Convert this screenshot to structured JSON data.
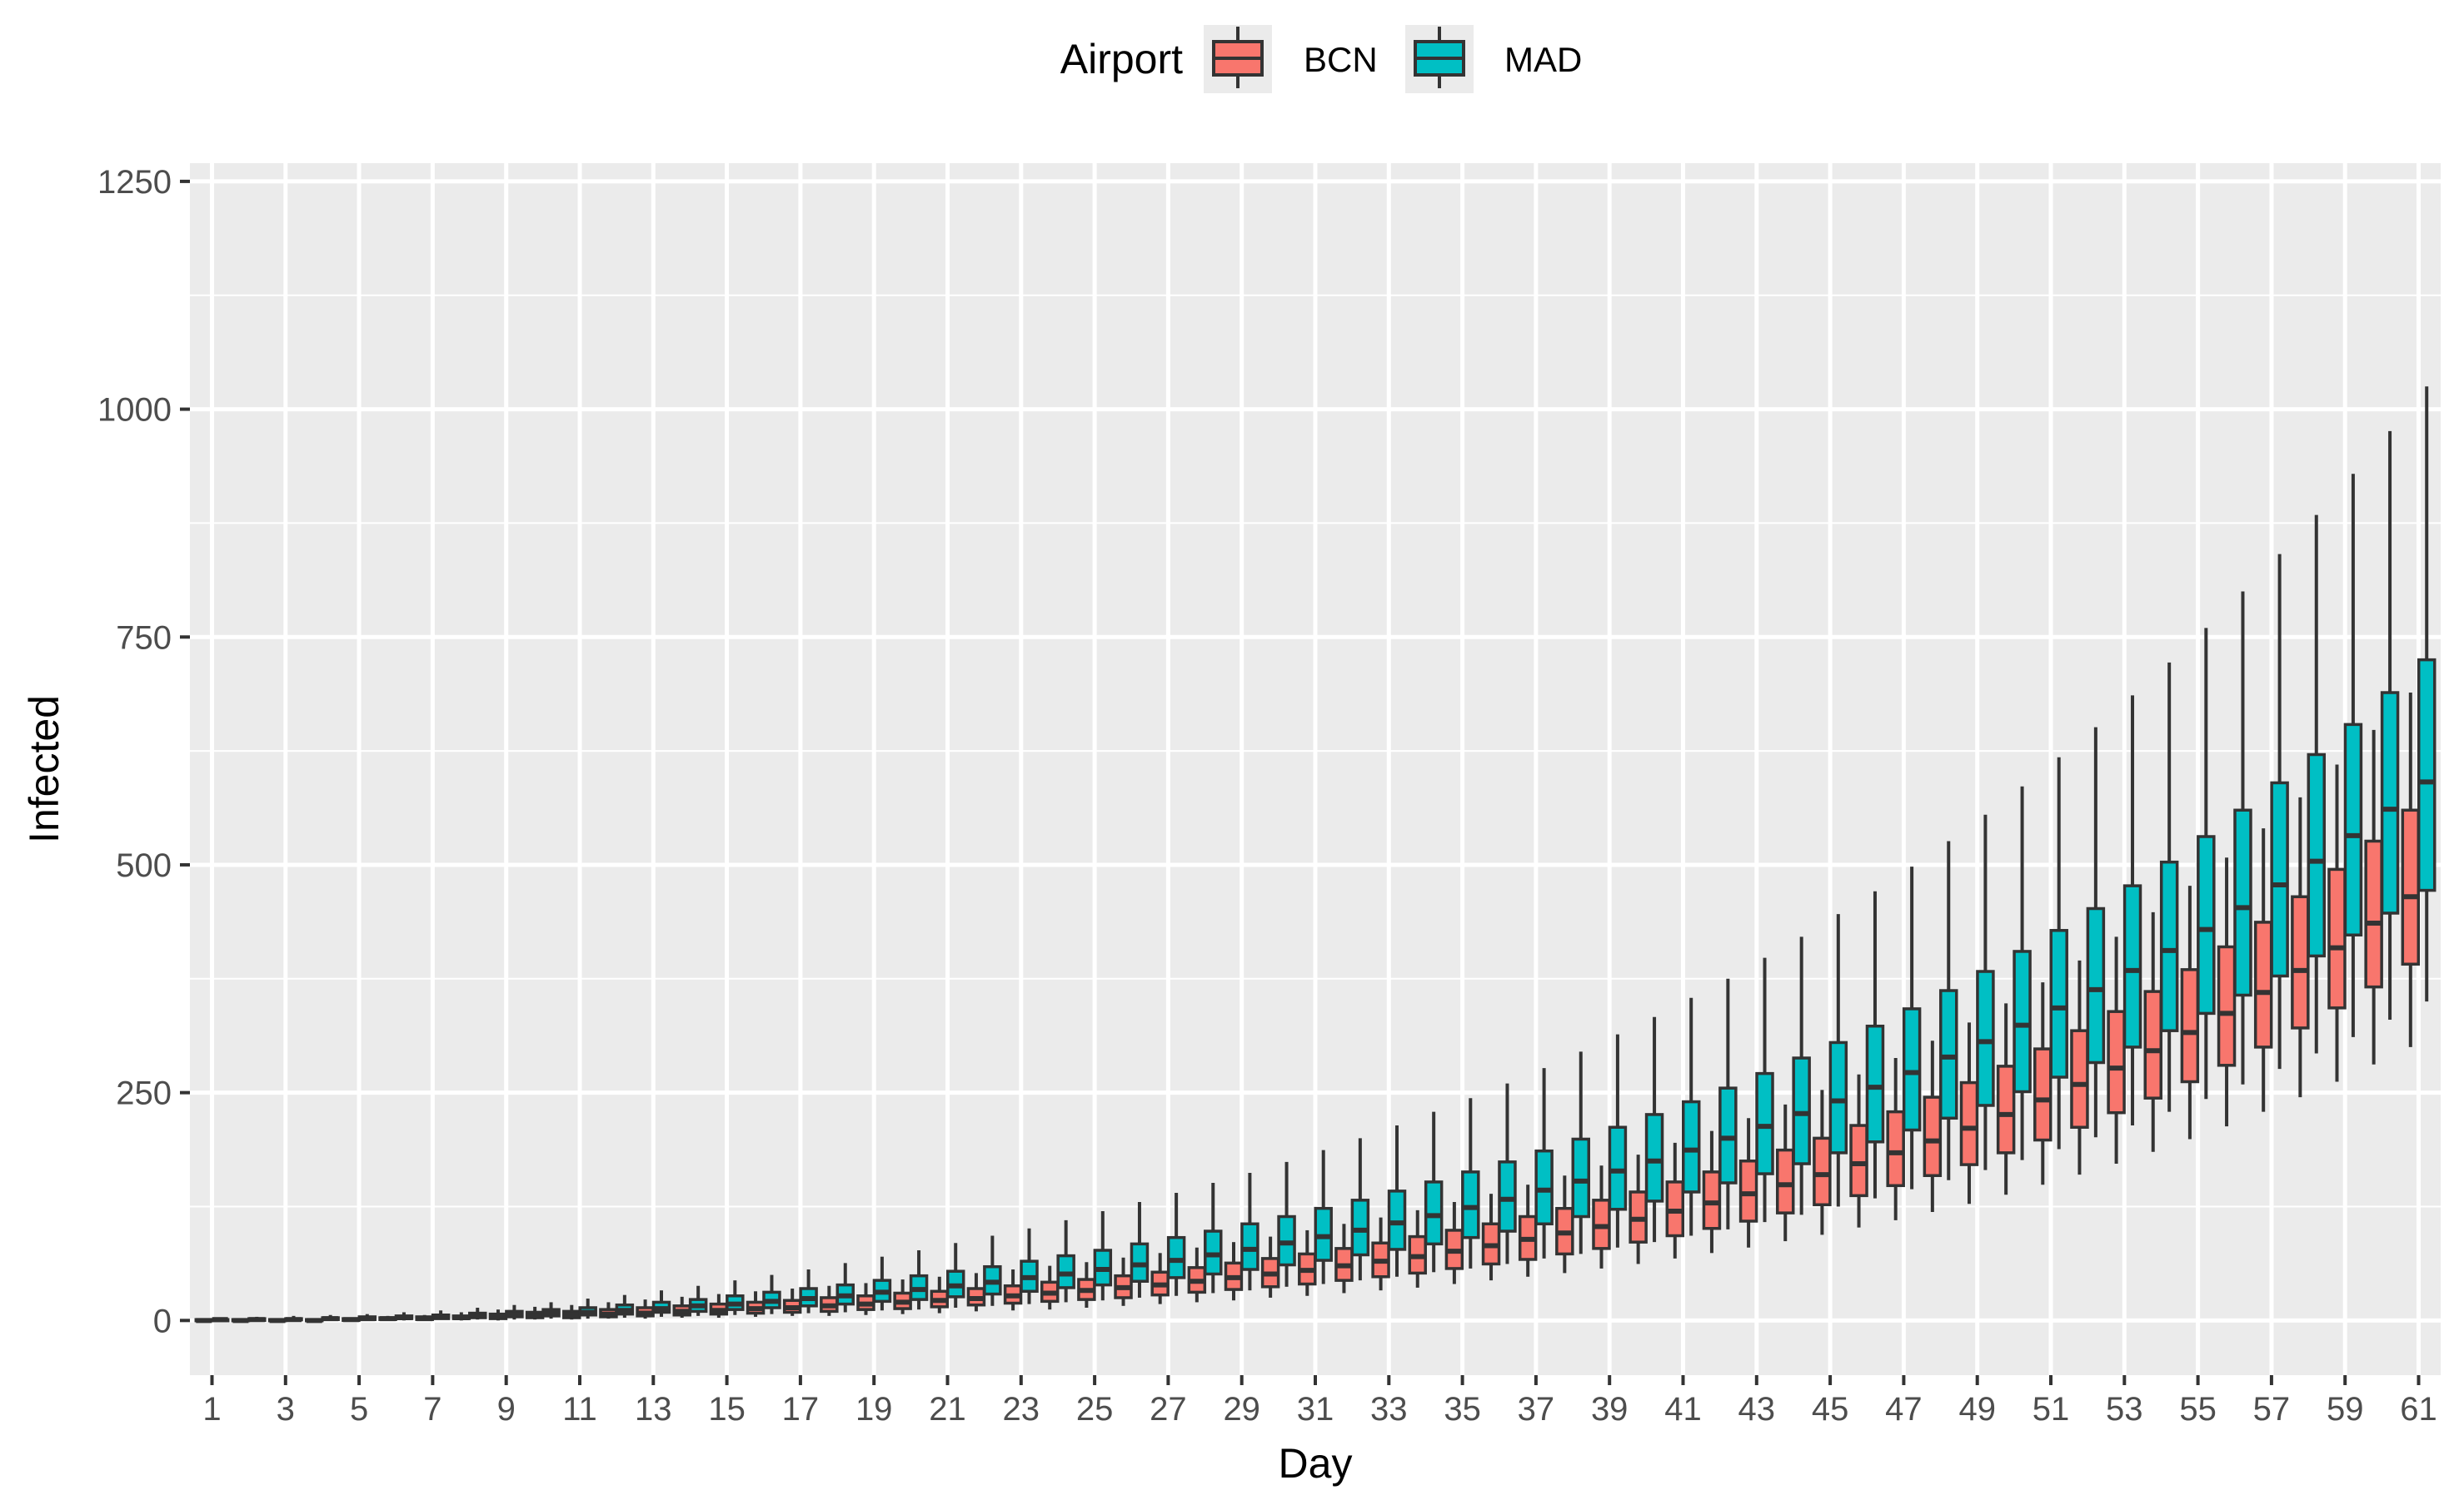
{
  "chart_data": {
    "type": "box",
    "xlabel": "Day",
    "ylabel": "Infected",
    "legend": {
      "title": "Airport",
      "position": "top"
    },
    "ylim": [
      -60,
      1270
    ],
    "yticks": [
      0,
      250,
      500,
      750,
      1000,
      1250
    ],
    "xticks": [
      1,
      3,
      5,
      7,
      9,
      11,
      13,
      15,
      17,
      19,
      21,
      23,
      25,
      27,
      29,
      31,
      33,
      35,
      37,
      39,
      41,
      43,
      45,
      47,
      49,
      51,
      53,
      55,
      57,
      59,
      61
    ],
    "grid": true,
    "box_fields": [
      "day",
      "min",
      "q1",
      "median",
      "q3",
      "max"
    ],
    "series": [
      {
        "name": "BCN",
        "color": "#F8766D",
        "boxes": [
          [
            1,
            0,
            0,
            0,
            1,
            2
          ],
          [
            2,
            0,
            0,
            0,
            1,
            2
          ],
          [
            3,
            0,
            0,
            0,
            1,
            2
          ],
          [
            4,
            0,
            0,
            0,
            1,
            2
          ],
          [
            5,
            0,
            0,
            1,
            2,
            3
          ],
          [
            6,
            0,
            1,
            2,
            3,
            5
          ],
          [
            7,
            0,
            1,
            2,
            4,
            6
          ],
          [
            8,
            0,
            2,
            3,
            5,
            9
          ],
          [
            9,
            0,
            2,
            4,
            7,
            12
          ],
          [
            10,
            1,
            3,
            5,
            9,
            15
          ],
          [
            11,
            1,
            3,
            6,
            10,
            17
          ],
          [
            12,
            2,
            4,
            7,
            12,
            20
          ],
          [
            13,
            2,
            5,
            8,
            14,
            23
          ],
          [
            14,
            3,
            6,
            10,
            16,
            26
          ],
          [
            15,
            3,
            7,
            11,
            18,
            29
          ],
          [
            16,
            4,
            8,
            13,
            20,
            32
          ],
          [
            17,
            5,
            9,
            14,
            22,
            35
          ],
          [
            18,
            5,
            10,
            16,
            25,
            38
          ],
          [
            19,
            6,
            12,
            18,
            27,
            41
          ],
          [
            20,
            7,
            13,
            20,
            30,
            45
          ],
          [
            21,
            8,
            15,
            22,
            32,
            48
          ],
          [
            22,
            10,
            17,
            24,
            35,
            52
          ],
          [
            23,
            11,
            19,
            27,
            38,
            56
          ],
          [
            24,
            12,
            21,
            30,
            42,
            60
          ],
          [
            25,
            14,
            23,
            33,
            45,
            64
          ],
          [
            26,
            16,
            25,
            36,
            49,
            69
          ],
          [
            27,
            18,
            28,
            39,
            53,
            74
          ],
          [
            28,
            20,
            31,
            43,
            58,
            80
          ],
          [
            29,
            22,
            34,
            47,
            63,
            86
          ],
          [
            30,
            25,
            37,
            51,
            68,
            92
          ],
          [
            31,
            27,
            40,
            55,
            73,
            99
          ],
          [
            32,
            30,
            44,
            60,
            79,
            106
          ],
          [
            33,
            33,
            48,
            65,
            85,
            113
          ],
          [
            34,
            36,
            52,
            70,
            92,
            121
          ],
          [
            35,
            40,
            57,
            76,
            99,
            130
          ],
          [
            36,
            44,
            62,
            82,
            106,
            139
          ],
          [
            37,
            48,
            67,
            89,
            114,
            149
          ],
          [
            38,
            52,
            73,
            96,
            123,
            159
          ],
          [
            39,
            57,
            79,
            103,
            132,
            170
          ],
          [
            40,
            62,
            86,
            111,
            141,
            182
          ],
          [
            41,
            68,
            93,
            120,
            152,
            195
          ],
          [
            42,
            74,
            101,
            129,
            163,
            208
          ],
          [
            43,
            80,
            109,
            139,
            175,
            222
          ],
          [
            44,
            87,
            118,
            149,
            187,
            237
          ],
          [
            45,
            94,
            127,
            160,
            200,
            253
          ],
          [
            46,
            102,
            137,
            172,
            214,
            270
          ],
          [
            47,
            110,
            148,
            184,
            229,
            288
          ],
          [
            48,
            119,
            159,
            197,
            245,
            307
          ],
          [
            49,
            128,
            171,
            211,
            261,
            327
          ],
          [
            50,
            138,
            184,
            226,
            279,
            348
          ],
          [
            51,
            149,
            198,
            242,
            298,
            371
          ],
          [
            52,
            160,
            212,
            259,
            318,
            395
          ],
          [
            53,
            172,
            228,
            277,
            339,
            421
          ],
          [
            54,
            185,
            244,
            296,
            361,
            448
          ],
          [
            55,
            199,
            262,
            316,
            385,
            477
          ],
          [
            56,
            213,
            280,
            337,
            410,
            508
          ],
          [
            57,
            229,
            300,
            360,
            437,
            540
          ],
          [
            58,
            245,
            321,
            384,
            465,
            574
          ],
          [
            59,
            262,
            343,
            409,
            495,
            610
          ],
          [
            60,
            281,
            366,
            436,
            526,
            648
          ],
          [
            61,
            300,
            391,
            465,
            560,
            689
          ]
        ]
      },
      {
        "name": "MAD",
        "color": "#00BFC4",
        "boxes": [
          [
            1,
            0,
            0,
            1,
            1,
            3
          ],
          [
            2,
            0,
            0,
            1,
            2,
            4
          ],
          [
            3,
            0,
            1,
            1,
            2,
            5
          ],
          [
            4,
            0,
            1,
            2,
            3,
            6
          ],
          [
            5,
            0,
            1,
            2,
            4,
            7
          ],
          [
            6,
            0,
            2,
            3,
            5,
            9
          ],
          [
            7,
            1,
            2,
            4,
            6,
            11
          ],
          [
            8,
            1,
            3,
            5,
            8,
            14
          ],
          [
            9,
            1,
            4,
            6,
            10,
            17
          ],
          [
            10,
            2,
            5,
            8,
            12,
            20
          ],
          [
            11,
            2,
            6,
            9,
            14,
            24
          ],
          [
            12,
            3,
            7,
            11,
            17,
            28
          ],
          [
            13,
            4,
            9,
            13,
            20,
            33
          ],
          [
            14,
            5,
            10,
            16,
            23,
            38
          ],
          [
            15,
            6,
            12,
            18,
            27,
            44
          ],
          [
            16,
            7,
            14,
            21,
            31,
            50
          ],
          [
            17,
            8,
            16,
            24,
            35,
            56
          ],
          [
            18,
            9,
            18,
            27,
            39,
            63
          ],
          [
            19,
            11,
            21,
            31,
            44,
            70
          ],
          [
            20,
            12,
            23,
            34,
            49,
            77
          ],
          [
            21,
            14,
            26,
            38,
            54,
            85
          ],
          [
            22,
            16,
            29,
            42,
            59,
            93
          ],
          [
            23,
            18,
            32,
            47,
            65,
            101
          ],
          [
            24,
            20,
            36,
            51,
            71,
            110
          ],
          [
            25,
            22,
            39,
            56,
            77,
            120
          ],
          [
            26,
            25,
            43,
            61,
            84,
            130
          ],
          [
            27,
            27,
            47,
            66,
            91,
            140
          ],
          [
            28,
            30,
            51,
            72,
            98,
            151
          ],
          [
            29,
            33,
            56,
            78,
            106,
            162
          ],
          [
            30,
            37,
            61,
            85,
            114,
            174
          ],
          [
            31,
            40,
            66,
            92,
            123,
            187
          ],
          [
            32,
            44,
            72,
            99,
            132,
            200
          ],
          [
            33,
            48,
            78,
            107,
            142,
            214
          ],
          [
            34,
            53,
            84,
            115,
            152,
            229
          ],
          [
            35,
            57,
            91,
            124,
            163,
            244
          ],
          [
            36,
            62,
            98,
            133,
            174,
            260
          ],
          [
            37,
            68,
            106,
            143,
            186,
            277
          ],
          [
            38,
            73,
            114,
            153,
            199,
            295
          ],
          [
            39,
            80,
            122,
            164,
            212,
            314
          ],
          [
            40,
            86,
            131,
            175,
            226,
            333
          ],
          [
            41,
            93,
            141,
            187,
            240,
            354
          ],
          [
            42,
            100,
            151,
            200,
            255,
            375
          ],
          [
            43,
            108,
            161,
            213,
            271,
            398
          ],
          [
            44,
            116,
            172,
            227,
            288,
            421
          ],
          [
            45,
            125,
            184,
            241,
            305,
            446
          ],
          [
            46,
            134,
            196,
            256,
            323,
            471
          ],
          [
            47,
            144,
            209,
            272,
            342,
            498
          ],
          [
            48,
            154,
            222,
            289,
            362,
            526
          ],
          [
            49,
            165,
            236,
            306,
            383,
            555
          ],
          [
            50,
            176,
            251,
            324,
            405,
            586
          ],
          [
            51,
            188,
            267,
            343,
            428,
            618
          ],
          [
            52,
            201,
            283,
            363,
            452,
            651
          ],
          [
            53,
            214,
            300,
            384,
            477,
            686
          ],
          [
            54,
            229,
            318,
            406,
            503,
            722
          ],
          [
            55,
            243,
            337,
            429,
            531,
            760
          ],
          [
            56,
            259,
            357,
            453,
            560,
            800
          ],
          [
            57,
            276,
            378,
            478,
            590,
            841
          ],
          [
            58,
            293,
            400,
            504,
            621,
            884
          ],
          [
            59,
            311,
            423,
            532,
            654,
            929
          ],
          [
            60,
            330,
            447,
            561,
            689,
            976
          ],
          [
            61,
            350,
            472,
            591,
            725,
            1025
          ]
        ]
      }
    ]
  }
}
